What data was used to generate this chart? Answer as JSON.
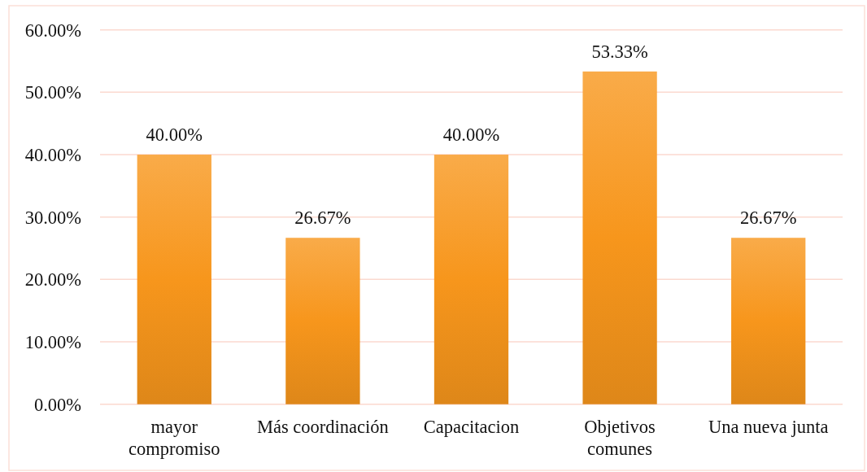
{
  "chart_data": {
    "type": "bar",
    "categories": [
      "mayor compromiso",
      "Más coordinación",
      "Capacitacion",
      "Objetivos comunes",
      "Una nueva junta"
    ],
    "values": [
      40,
      26.67,
      40,
      53.33,
      26.67
    ],
    "color": "#f7961c",
    "value_labels": [
      "40.00%",
      "26.67%",
      "40.00%",
      "53.33%",
      "26.67%"
    ],
    "ylim": [
      0,
      60
    ],
    "yticks": [
      {
        "value": 0,
        "label": "0.00%"
      },
      {
        "value": 10,
        "label": "10.00%"
      },
      {
        "value": 20,
        "label": "20.00%"
      },
      {
        "value": 30,
        "label": "30.00%"
      },
      {
        "value": 40,
        "label": "40.00%"
      },
      {
        "value": 50,
        "label": "50.00%"
      },
      {
        "value": 60,
        "label": "60.00%"
      }
    ],
    "grid": "y"
  }
}
